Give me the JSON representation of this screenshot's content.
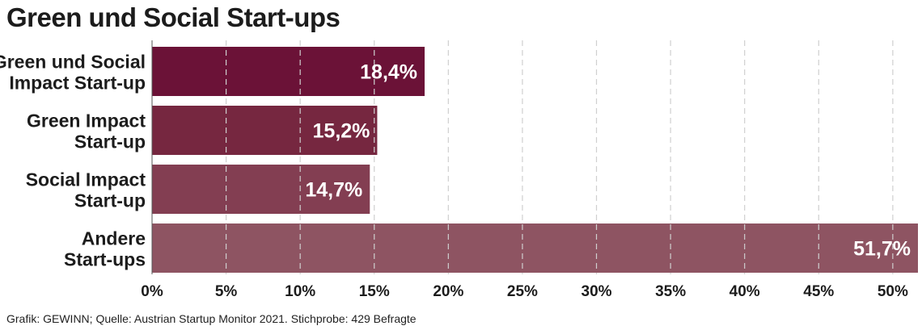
{
  "title": "Green und Social Start-ups",
  "footer": "Grafik: GEWINN; Quelle: Austrian Startup Monitor 2021. Stichprobe: 429 Befragte",
  "chart_data": {
    "type": "bar",
    "orientation": "horizontal",
    "title": "Green und Social Start-ups",
    "categories": [
      [
        "Green und Social",
        "Impact Start-up"
      ],
      [
        "Green Impact",
        "Start-up"
      ],
      [
        "Social Impact",
        "Start-up"
      ],
      [
        "Andere",
        "Start-ups"
      ]
    ],
    "values": [
      18.4,
      15.2,
      14.7,
      51.7
    ],
    "value_labels": [
      "18,4%",
      "15,2%",
      "14,7%",
      "51,7%"
    ],
    "colors": [
      "#6b1237",
      "#762740",
      "#833e52",
      "#8e5462"
    ],
    "xlim": [
      0,
      51.7
    ],
    "x_ticks": [
      0,
      5,
      10,
      15,
      20,
      25,
      30,
      35,
      40,
      45,
      50
    ],
    "x_tick_labels": [
      "0%",
      "5%",
      "10%",
      "15%",
      "20%",
      "25%",
      "30%",
      "35%",
      "40%",
      "45%",
      "50%"
    ],
    "grid": "vertical dashed",
    "legend": "none"
  }
}
